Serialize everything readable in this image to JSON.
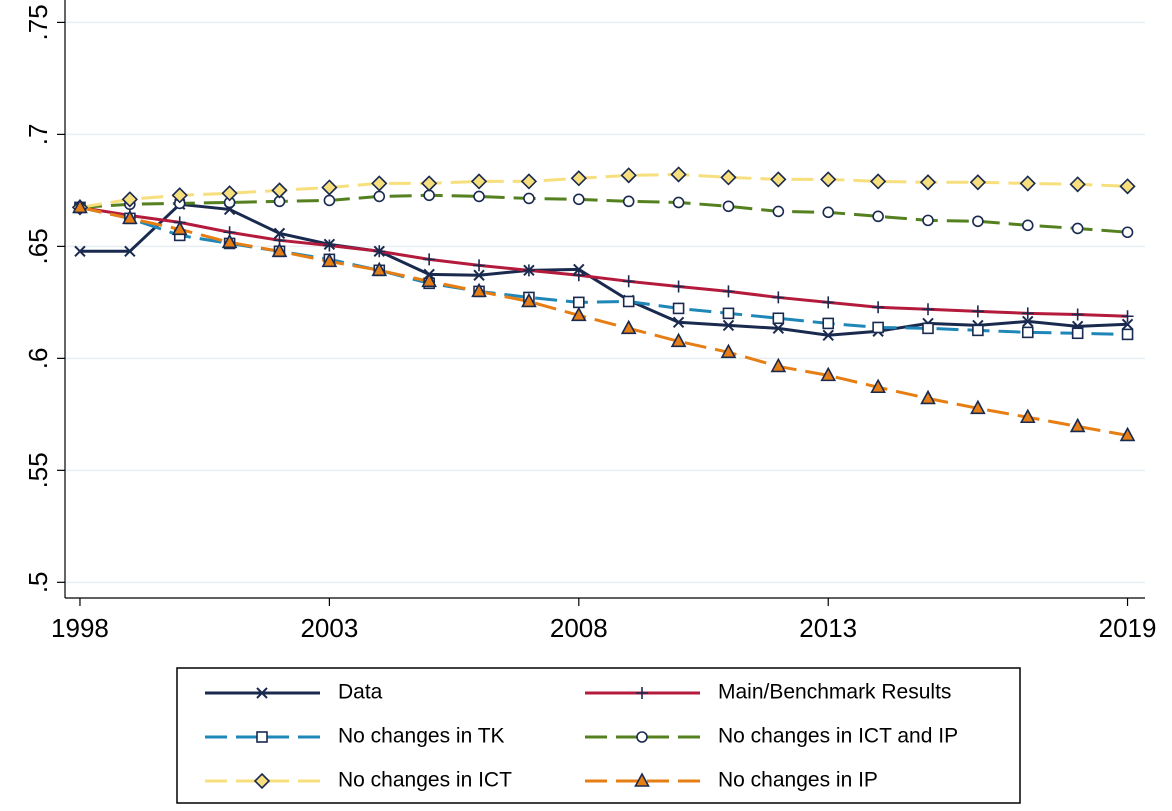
{
  "chart_data": {
    "type": "line",
    "x": [
      1998,
      1999,
      2000,
      2001,
      2002,
      2003,
      2004,
      2005,
      2006,
      2007,
      2008,
      2009,
      2010,
      2011,
      2012,
      2013,
      2014,
      2015,
      2016,
      2017,
      2018,
      2019
    ],
    "xlim": [
      1997.7,
      2019.35
    ],
    "xticks": [
      1998,
      2003,
      2008,
      2013,
      2019
    ],
    "ylim": [
      0.493,
      0.76
    ],
    "yticks": [
      {
        "value": 0.5,
        "label": ".5"
      },
      {
        "value": 0.55,
        "label": ".55"
      },
      {
        "value": 0.6,
        "label": ".6"
      },
      {
        "value": 0.65,
        "label": ".65"
      },
      {
        "value": 0.7,
        "label": ".7"
      },
      {
        "value": 0.75,
        "label": ".75"
      }
    ],
    "grid": true,
    "legend": "bottom",
    "series": [
      {
        "name": "Data",
        "color": "#1a2a4f",
        "marker": "x",
        "dashed": false,
        "values": [
          0.6478,
          0.6478,
          0.6688,
          0.6665,
          0.6558,
          0.6509,
          0.6478,
          0.6375,
          0.6371,
          0.6393,
          0.6397,
          0.6259,
          0.6161,
          0.6147,
          0.6134,
          0.6103,
          0.6121,
          0.6156,
          0.6147,
          0.6165,
          0.6143,
          0.6152
        ]
      },
      {
        "name": "Main/Benchmark Results",
        "color": "#b41a3c",
        "marker": "plus",
        "dashed": false,
        "values": [
          0.6674,
          0.6638,
          0.6607,
          0.6563,
          0.6527,
          0.6504,
          0.6478,
          0.6442,
          0.6415,
          0.6393,
          0.6371,
          0.6344,
          0.6321,
          0.6299,
          0.6272,
          0.625,
          0.6228,
          0.6219,
          0.621,
          0.6201,
          0.6196,
          0.6188
        ]
      },
      {
        "name": "No changes in TK",
        "color": "#1f87b8",
        "marker": "square",
        "dashed": true,
        "values": [
          0.6674,
          0.6625,
          0.6549,
          0.6513,
          0.6478,
          0.6442,
          0.6393,
          0.6335,
          0.6299,
          0.6272,
          0.625,
          0.6254,
          0.6223,
          0.6201,
          0.6179,
          0.6156,
          0.6138,
          0.6134,
          0.6125,
          0.6116,
          0.6112,
          0.6107
        ]
      },
      {
        "name": "No changes in ICT and IP",
        "color": "#55801f",
        "marker": "circle",
        "dashed": true,
        "values": [
          0.6674,
          0.6688,
          0.6692,
          0.6696,
          0.6701,
          0.6705,
          0.6723,
          0.6728,
          0.6723,
          0.6714,
          0.671,
          0.6701,
          0.6696,
          0.6679,
          0.6656,
          0.6652,
          0.6634,
          0.6616,
          0.6612,
          0.6594,
          0.658,
          0.6563
        ]
      },
      {
        "name": "No changes in ICT",
        "color": "#f7df7e",
        "marker": "diamond",
        "dashed": true,
        "values": [
          0.6674,
          0.671,
          0.6728,
          0.6737,
          0.675,
          0.6763,
          0.6781,
          0.6781,
          0.679,
          0.679,
          0.6804,
          0.6817,
          0.6821,
          0.6808,
          0.6799,
          0.6799,
          0.679,
          0.6786,
          0.6786,
          0.6781,
          0.6777,
          0.6768
        ]
      },
      {
        "name": "No changes in IP",
        "color": "#e67e14",
        "marker": "triangle",
        "dashed": true,
        "values": [
          0.6674,
          0.6625,
          0.6576,
          0.6518,
          0.6478,
          0.6433,
          0.6393,
          0.6344,
          0.6299,
          0.6254,
          0.6192,
          0.6134,
          0.6076,
          0.6027,
          0.5964,
          0.5924,
          0.5871,
          0.5821,
          0.5777,
          0.5737,
          0.5696,
          0.5656
        ]
      }
    ]
  }
}
